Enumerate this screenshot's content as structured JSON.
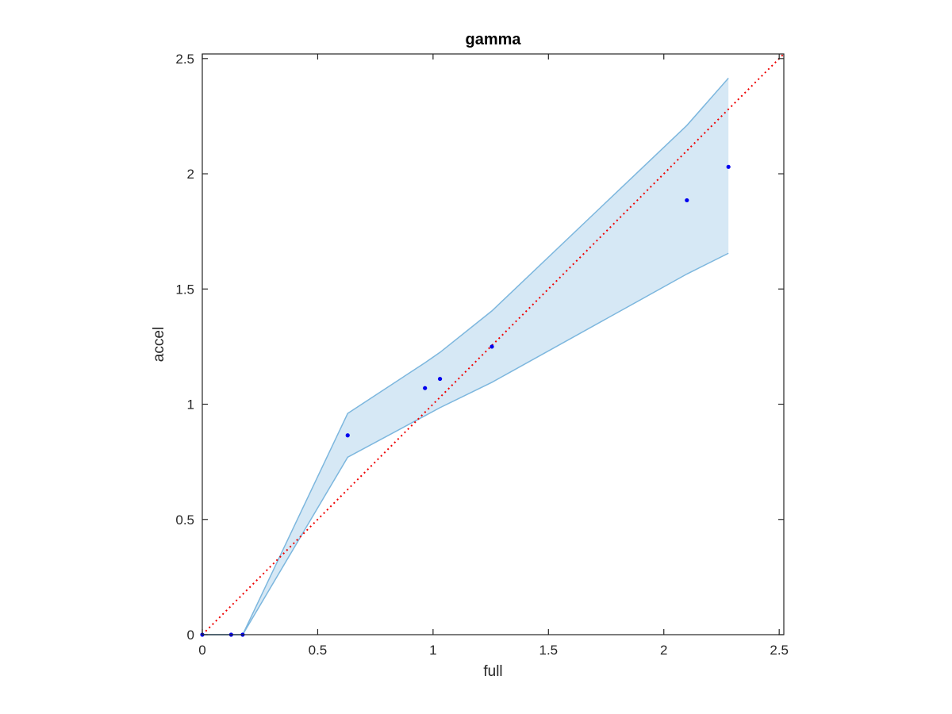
{
  "chart_data": {
    "type": "scatter",
    "title": "gamma",
    "xlabel": "full",
    "ylabel": "accel",
    "xlim": [
      0,
      2.52
    ],
    "ylim": [
      0,
      2.52
    ],
    "xticks": [
      0,
      0.5,
      1,
      1.5,
      2,
      2.5
    ],
    "yticks": [
      0,
      0.5,
      1,
      1.5,
      2,
      2.5
    ],
    "xtick_labels": [
      "0",
      "0.5",
      "1",
      "1.5",
      "2",
      "2.5"
    ],
    "ytick_labels": [
      "0",
      "0.5",
      "1",
      "1.5",
      "2",
      "2.5"
    ],
    "grid": false,
    "series": [
      {
        "kind": "points",
        "color": "#0000ee",
        "x": [
          0.0,
          0.125,
          0.175,
          0.63,
          0.965,
          1.03,
          1.255,
          2.1,
          2.28
        ],
        "y": [
          0.0,
          0.0,
          0.0,
          0.865,
          1.07,
          1.11,
          1.25,
          1.885,
          2.03
        ]
      },
      {
        "kind": "band",
        "color": "#7db7de",
        "fill": "#d6e8f5",
        "x": [
          0.0,
          0.125,
          0.175,
          0.63,
          0.965,
          1.03,
          1.255,
          2.1,
          2.28
        ],
        "lower": [
          0.0,
          0.0,
          0.0,
          0.77,
          0.95,
          0.985,
          1.095,
          1.565,
          1.655
        ],
        "upper": [
          0.0,
          0.0,
          0.0,
          0.96,
          1.18,
          1.225,
          1.405,
          2.21,
          2.415
        ]
      },
      {
        "kind": "reference-line",
        "style": "dotted",
        "color": "#ee0000",
        "x": [
          0,
          2.52
        ],
        "y": [
          0,
          2.52
        ]
      }
    ]
  }
}
